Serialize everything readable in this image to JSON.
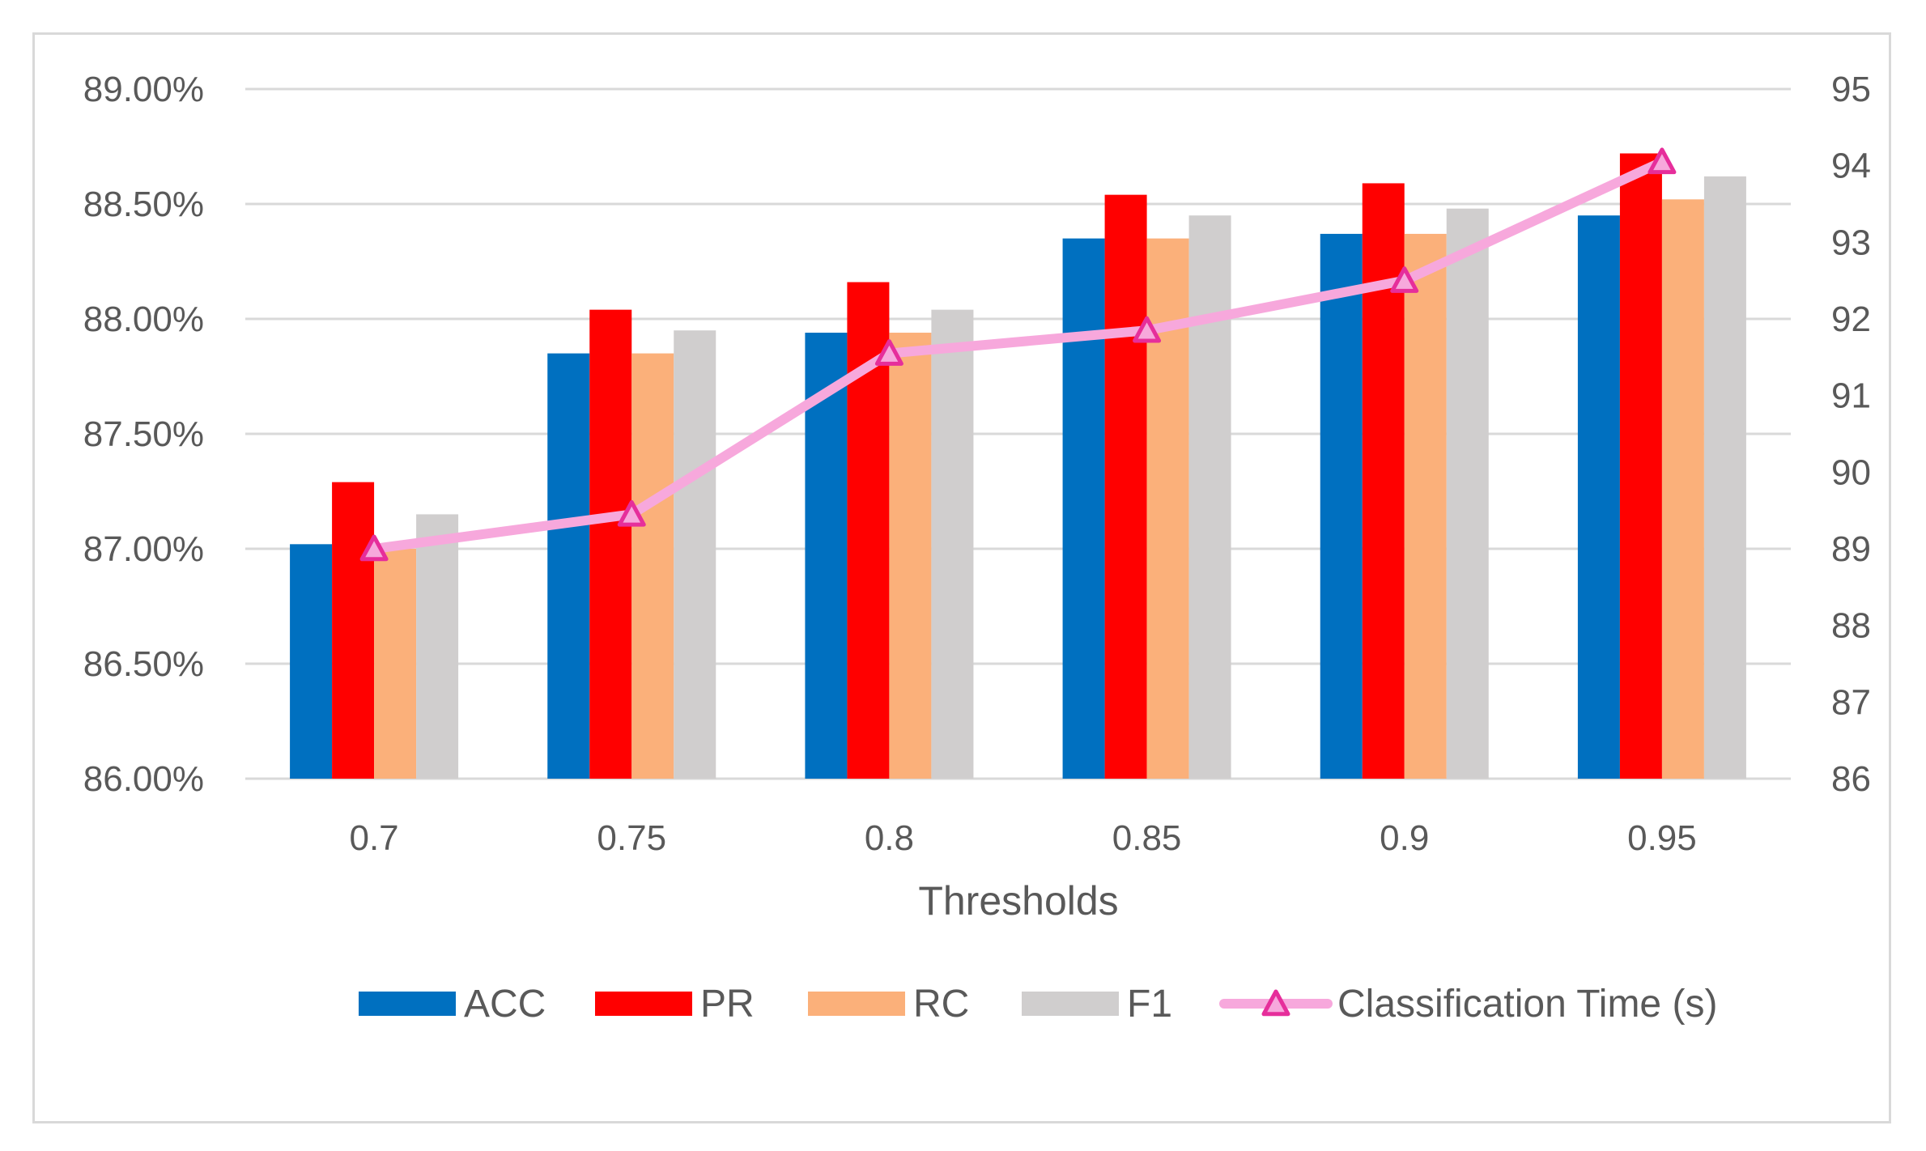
{
  "chart_data": {
    "type": "bar",
    "title": "",
    "xlabel": "Thresholds",
    "ylabel": "",
    "y2label": "",
    "categories": [
      "0.7",
      "0.75",
      "0.8",
      "0.85",
      "0.9",
      "0.95"
    ],
    "ylim": [
      86.0,
      89.0
    ],
    "y_ticks": [
      86.0,
      86.5,
      87.0,
      87.5,
      88.0,
      88.5,
      89.0
    ],
    "y_tick_labels": [
      "86.00%",
      "86.50%",
      "87.00%",
      "87.50%",
      "88.00%",
      "88.50%",
      "89.00%"
    ],
    "y2lim": [
      86,
      95
    ],
    "y2_ticks": [
      86,
      87,
      88,
      89,
      90,
      91,
      92,
      93,
      94,
      95
    ],
    "y2_tick_labels": [
      "86",
      "87",
      "88",
      "89",
      "90",
      "91",
      "92",
      "93",
      "94",
      "95"
    ],
    "grid": true,
    "legend_position": "bottom",
    "series": [
      {
        "name": "ACC",
        "type": "bar",
        "axis": "left",
        "color": "#0070c0",
        "values": [
          87.02,
          87.85,
          87.94,
          88.35,
          88.37,
          88.45
        ]
      },
      {
        "name": "PR",
        "type": "bar",
        "axis": "left",
        "color": "#ff0000",
        "values": [
          87.29,
          88.04,
          88.16,
          88.54,
          88.59,
          88.72
        ]
      },
      {
        "name": "RC",
        "type": "bar",
        "axis": "left",
        "color": "#fbb07a",
        "values": [
          87.0,
          87.85,
          87.94,
          88.35,
          88.37,
          88.52
        ]
      },
      {
        "name": "F1",
        "type": "bar",
        "axis": "left",
        "color": "#d0cece",
        "values": [
          87.15,
          87.95,
          88.04,
          88.45,
          88.48,
          88.62
        ]
      },
      {
        "name": "Classification Time (s)",
        "type": "line",
        "axis": "right",
        "color": "#f7a8dc",
        "marker": "triangle",
        "marker_color": "#e62e9b",
        "values": [
          89.0,
          89.45,
          91.55,
          91.85,
          92.5,
          94.05
        ]
      }
    ]
  }
}
